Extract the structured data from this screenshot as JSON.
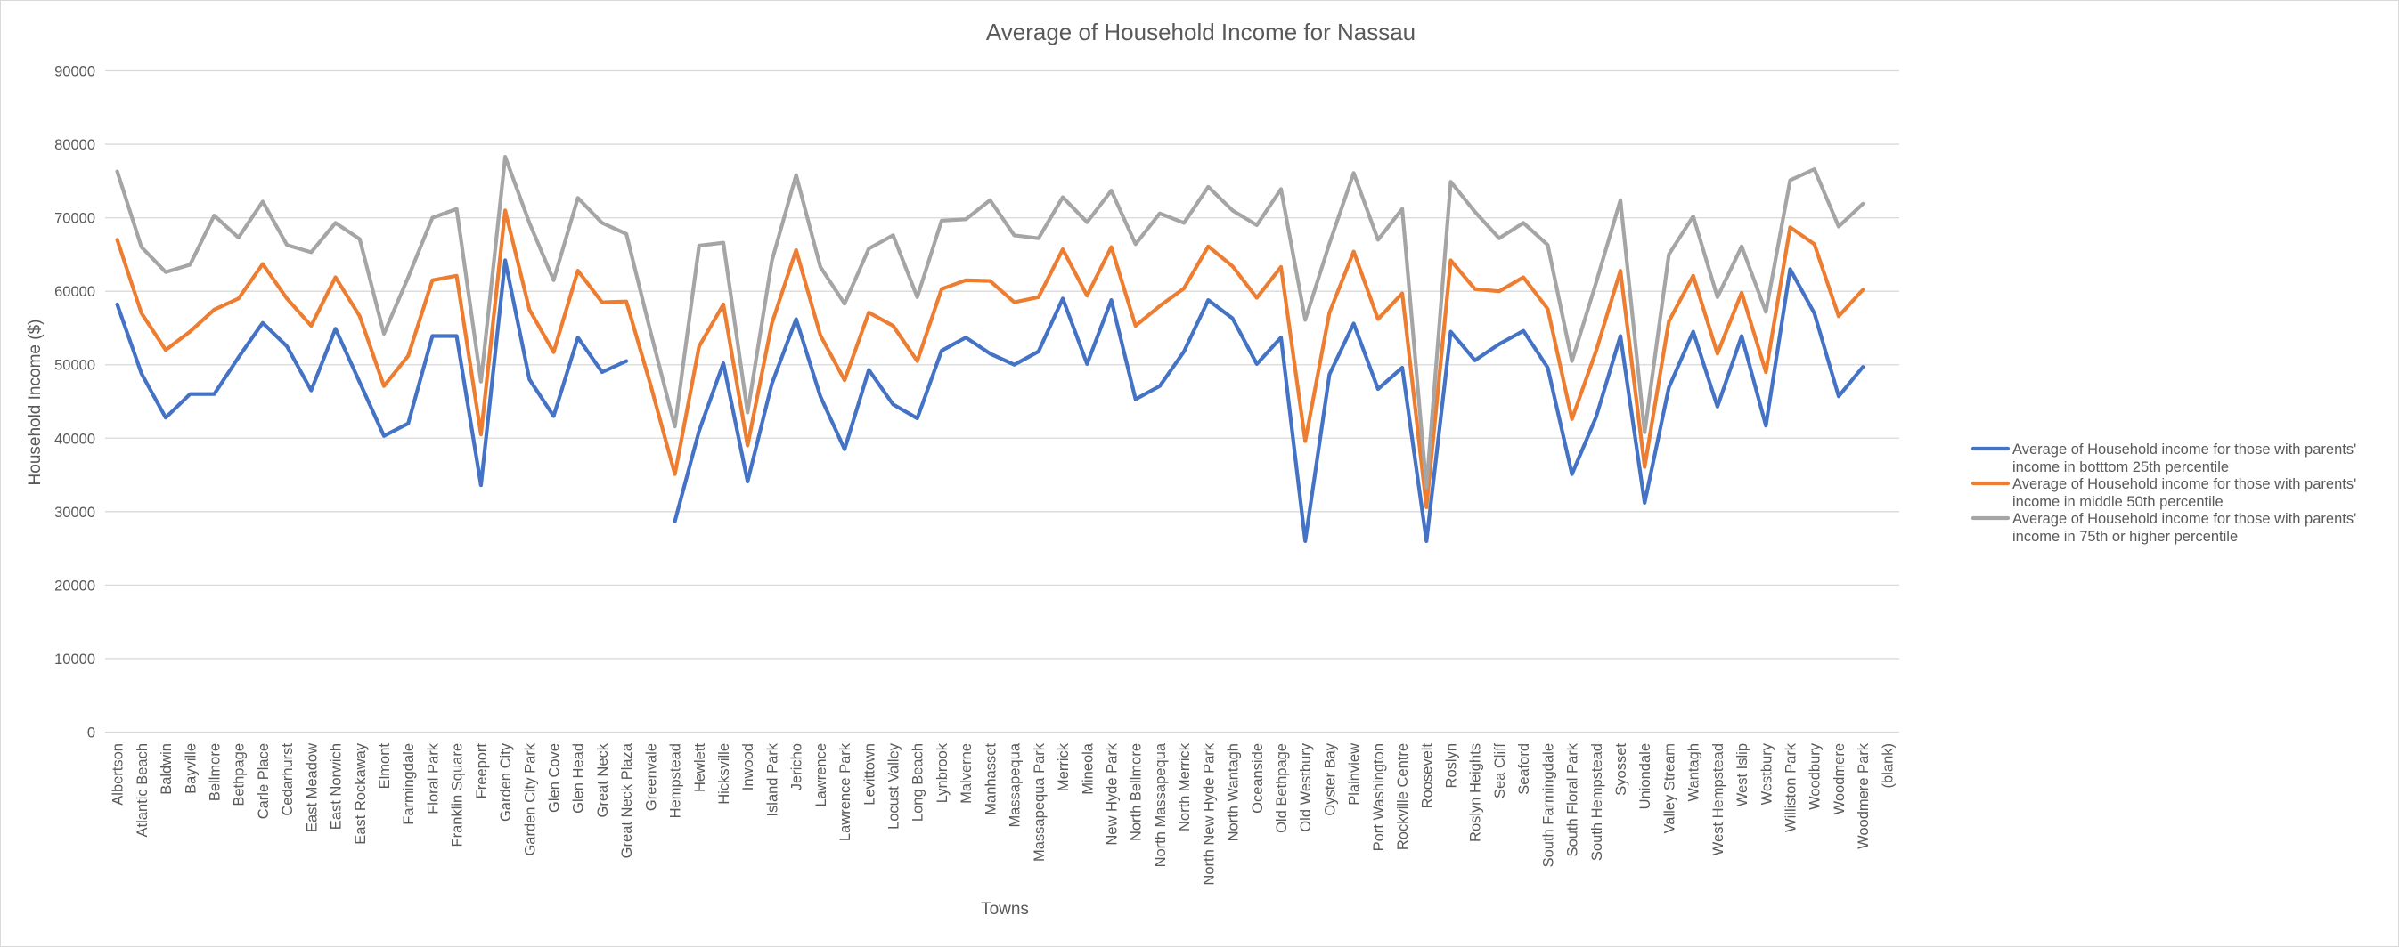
{
  "chart_data": {
    "type": "line",
    "title": "Average of Household Income for Nassau",
    "xlabel": "Towns",
    "ylabel": "Household Income ($)",
    "ylim": [
      0,
      90000
    ],
    "yticks": [
      0,
      10000,
      20000,
      30000,
      40000,
      50000,
      60000,
      70000,
      80000,
      90000
    ],
    "grid": "horizontal",
    "legend_position": "right",
    "categories": [
      "Albertson",
      "Atlantic Beach",
      "Baldwin",
      "Bayville",
      "Bellmore",
      "Bethpage",
      "Carle Place",
      "Cedarhurst",
      "East Meadow",
      "East Norwich",
      "East Rockaway",
      "Elmont",
      "Farmingdale",
      "Floral Park",
      "Franklin Square",
      "Freeport",
      "Garden City",
      "Garden City Park",
      "Glen Cove",
      "Glen Head",
      "Great Neck",
      "Great Neck Plaza",
      "Greenvale",
      "Hempstead",
      "Hewlett",
      "Hicksville",
      "Inwood",
      "Island Park",
      "Jericho",
      "Lawrence",
      "Lawrence Park",
      "Levittown",
      "Locust Valley",
      "Long Beach",
      "Lynbrook",
      "Malverne",
      "Manhasset",
      "Massapequa",
      "Massapequa Park",
      "Merrick",
      "Mineola",
      "New Hyde Park",
      "North Bellmore",
      "North Massapequa",
      "North Merrick",
      "North New Hyde Park",
      "North Wantagh",
      "Oceanside",
      "Old Bethpage",
      "Old Westbury",
      "Oyster Bay",
      "Plainview",
      "Port Washington",
      "Rockville Centre",
      "Roosevelt",
      "Roslyn",
      "Roslyn Heights",
      "Sea Cliff",
      "Seaford",
      "South Farmingdale",
      "South Floral Park",
      "South Hempstead",
      "Syosset",
      "Uniondale",
      "Valley Stream",
      "Wantagh",
      "West Hempstead",
      "West Islip",
      "Westbury",
      "Williston Park",
      "Woodbury",
      "Woodmere",
      "Woodmere Park",
      "(blank)"
    ],
    "series": [
      {
        "name": "Average of Household income for those with parents' income in botttom 25th percentile",
        "color": "#4472C4",
        "values": [
          58200,
          48800,
          42800,
          46000,
          46000,
          51000,
          55700,
          52500,
          46500,
          54900,
          47600,
          40300,
          42000,
          53900,
          53900,
          33600,
          64200,
          48000,
          43000,
          53700,
          49000,
          50500,
          null,
          28700,
          41000,
          50200,
          34100,
          47400,
          56200,
          45700,
          38500,
          49300,
          44600,
          42700,
          51900,
          53700,
          51500,
          50000,
          51800,
          59000,
          50100,
          58800,
          45300,
          47100,
          51800,
          58800,
          56300,
          50100,
          53700,
          26000,
          48700,
          55600,
          46700,
          49600,
          26000,
          54500,
          50600,
          52800,
          54600,
          49600,
          35100,
          42900,
          53900,
          31200,
          46900,
          54500,
          44300,
          53900,
          41700,
          63000,
          57000,
          45700,
          49700,
          null
        ]
      },
      {
        "name": "Average of Household income for those with parents' income in middle 50th percentile",
        "color": "#ED7D31",
        "values": [
          67000,
          57000,
          52000,
          54500,
          57500,
          59000,
          63700,
          59000,
          55300,
          61900,
          56600,
          47100,
          51200,
          61500,
          62100,
          40500,
          71000,
          57500,
          51700,
          62800,
          58500,
          58600,
          47200,
          35100,
          52500,
          58200,
          39000,
          55600,
          65600,
          54000,
          47900,
          57100,
          55300,
          50500,
          60300,
          61500,
          61400,
          58500,
          59200,
          65700,
          59400,
          66000,
          55300,
          58000,
          60400,
          66100,
          63400,
          59100,
          63300,
          39600,
          57100,
          65400,
          56200,
          59700,
          30600,
          64200,
          60300,
          60000,
          61900,
          57600,
          42600,
          51900,
          62800,
          36100,
          55900,
          62100,
          51500,
          59800,
          49000,
          68700,
          66400,
          56600,
          60200,
          null
        ]
      },
      {
        "name": "Average of Household income for those with parents' income in 75th or higher percentile",
        "color": "#A5A5A5",
        "values": [
          76300,
          66000,
          62600,
          63600,
          70300,
          67300,
          72200,
          66300,
          65300,
          69300,
          67100,
          54200,
          61900,
          70000,
          71200,
          47700,
          78300,
          69300,
          61500,
          72700,
          69300,
          67800,
          54400,
          41600,
          66200,
          66600,
          43500,
          64100,
          75800,
          63300,
          58300,
          65800,
          67600,
          59200,
          69600,
          69800,
          72400,
          67600,
          67200,
          72800,
          69400,
          73700,
          66400,
          70600,
          69300,
          74200,
          71000,
          69000,
          73900,
          56100,
          66500,
          76100,
          67000,
          71200,
          33300,
          74900,
          70800,
          67200,
          69300,
          66300,
          50500,
          61200,
          72400,
          40800,
          65000,
          70200,
          59200,
          66100,
          57200,
          75100,
          76600,
          68800,
          71900,
          null
        ]
      }
    ],
    "legend": [
      {
        "series": 0,
        "lines": [
          "Average of Household income for those with parents'",
          "income in botttom 25th percentile"
        ]
      },
      {
        "series": 1,
        "lines": [
          "Average of Household income for those with parents'",
          "income in middle 50th percentile"
        ]
      },
      {
        "series": 2,
        "lines": [
          "Average of Household income for those with parents'",
          "income in 75th or higher percentile"
        ]
      }
    ]
  }
}
